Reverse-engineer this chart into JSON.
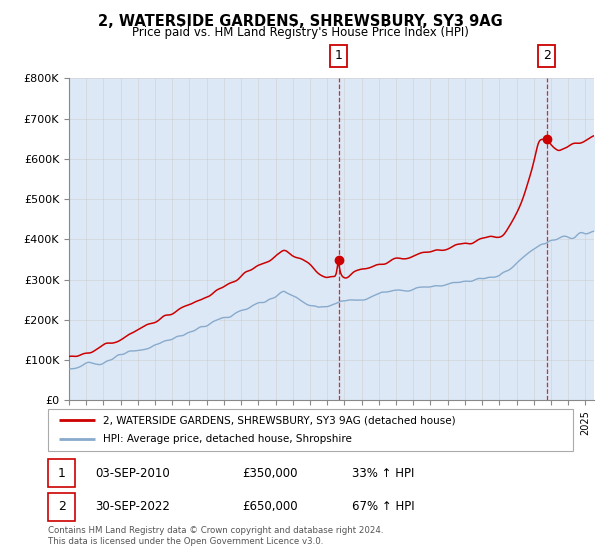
{
  "title": "2, WATERSIDE GARDENS, SHREWSBURY, SY3 9AG",
  "subtitle": "Price paid vs. HM Land Registry's House Price Index (HPI)",
  "legend_line1": "2, WATERSIDE GARDENS, SHREWSBURY, SY3 9AG (detached house)",
  "legend_line2": "HPI: Average price, detached house, Shropshire",
  "annotation1_date": "03-SEP-2010",
  "annotation1_price": "£350,000",
  "annotation1_hpi": "33% ↑ HPI",
  "annotation1_year": 2010.67,
  "annotation1_value": 350000,
  "annotation2_date": "30-SEP-2022",
  "annotation2_price": "£650,000",
  "annotation2_hpi": "67% ↑ HPI",
  "annotation2_year": 2022.75,
  "annotation2_value": 650000,
  "price_color": "#cc0000",
  "hpi_color": "#88aacc",
  "fill_color": "#dce8f5",
  "background_color": "#dce8f5",
  "plot_bg_color": "#ffffff",
  "ylim": [
    0,
    800000
  ],
  "xlim_start": 1995.0,
  "xlim_end": 2025.5,
  "yticks": [
    0,
    100000,
    200000,
    300000,
    400000,
    500000,
    600000,
    700000,
    800000
  ],
  "ytick_labels": [
    "£0",
    "£100K",
    "£200K",
    "£300K",
    "£400K",
    "£500K",
    "£600K",
    "£700K",
    "£800K"
  ],
  "footer": "Contains HM Land Registry data © Crown copyright and database right 2024.\nThis data is licensed under the Open Government Licence v3.0.",
  "grid_color": "#cccccc",
  "dashed_line_color": "#cc0000"
}
